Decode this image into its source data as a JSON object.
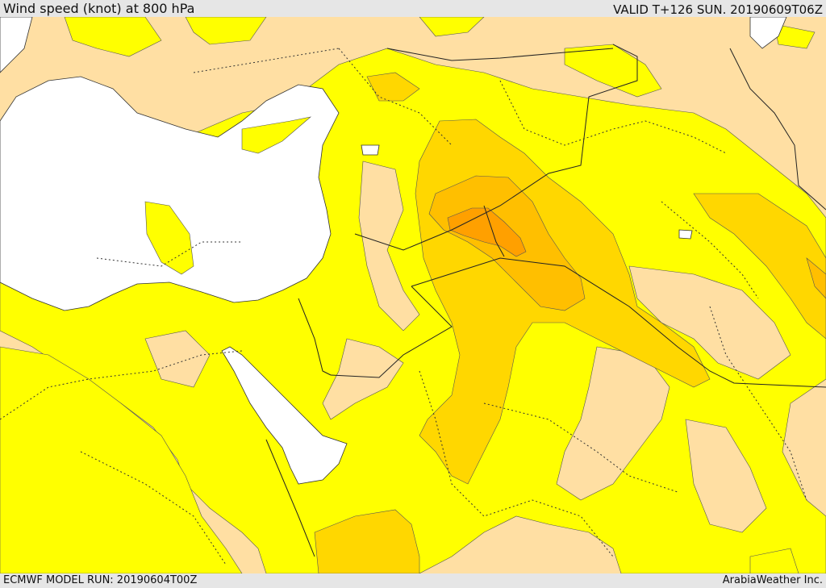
{
  "header": {
    "title": "Wind speed (knot) at 800 hPa",
    "valid": "VALID T+126 SUN. 20190609T06Z"
  },
  "footer": {
    "model_run": "ECMWF MODEL RUN: 20190604T00Z",
    "credit": "ArabiaWeather Inc."
  },
  "colors": {
    "low_wind": "#ffdfa3",
    "yellow": "#ffff00",
    "gold": "#ffd700",
    "amber": "#ffbf00",
    "orange": "#ffa000",
    "sea": "#ffffff"
  }
}
